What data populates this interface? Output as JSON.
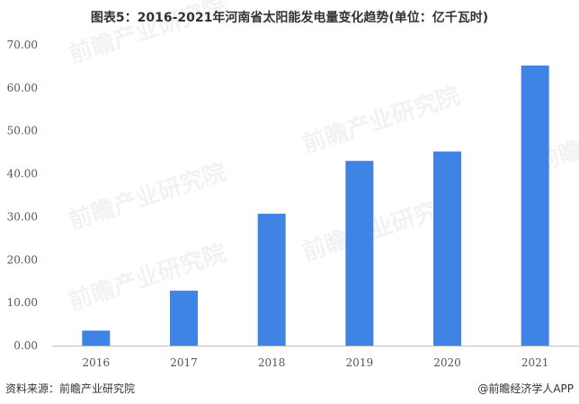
{
  "chart_data": {
    "type": "bar",
    "title": "图表5：2016-2021年河南省太阳能发电量变化趋势(单位：亿千瓦时)",
    "categories": [
      "2016",
      "2017",
      "2018",
      "2019",
      "2020",
      "2021"
    ],
    "values": [
      3.5,
      12.8,
      30.7,
      43.0,
      45.2,
      65.2
    ],
    "ylim": [
      0,
      70
    ],
    "yticks": [
      "0.00",
      "10.00",
      "20.00",
      "30.00",
      "40.00",
      "50.00",
      "60.00",
      "70.00"
    ],
    "xlabel": "",
    "ylabel": "",
    "grid": false,
    "bar_color": "#3f84e5"
  },
  "footer": {
    "source": "资料来源：前瞻产业研究院",
    "brand": "@前瞻经济学人APP"
  },
  "watermark": {
    "text": "前瞻产业研究院"
  }
}
